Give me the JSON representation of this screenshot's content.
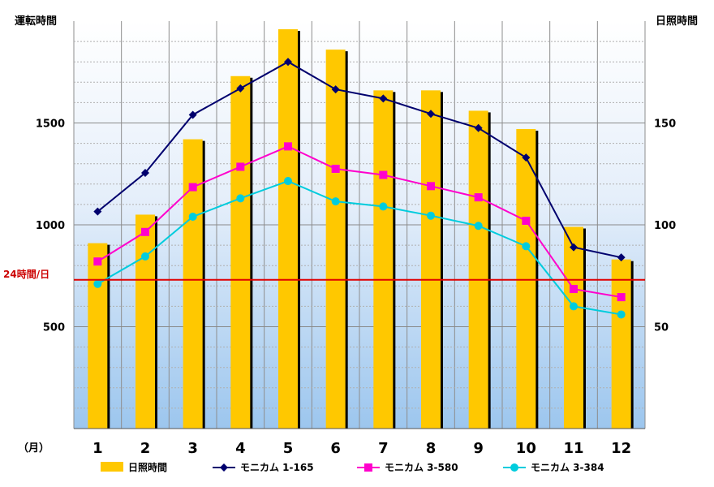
{
  "chart_data": {
    "type": "bar+line",
    "left_axis": {
      "label": "運転時間",
      "range": [
        0,
        2000
      ],
      "ticks": [
        500,
        1000,
        1500
      ]
    },
    "right_axis": {
      "label": "日照時間",
      "range": [
        0,
        200
      ],
      "ticks": [
        50,
        100,
        150
      ]
    },
    "x_unit_label": "（月）",
    "categories": [
      "1",
      "2",
      "3",
      "4",
      "5",
      "6",
      "7",
      "8",
      "9",
      "10",
      "11",
      "12"
    ],
    "bars": {
      "name": "日照時間",
      "axis": "right",
      "color": "#FFC800",
      "values": [
        91,
        105,
        142,
        173,
        196,
        186,
        166,
        166,
        156,
        147,
        99,
        83
      ]
    },
    "series": [
      {
        "name": "モニカム 1-165",
        "axis": "left",
        "color": "#00006E",
        "marker": "diamond",
        "values": [
          1065,
          1255,
          1540,
          1670,
          1800,
          1665,
          1620,
          1545,
          1475,
          1330,
          890,
          840
        ]
      },
      {
        "name": "モニカム 3-580",
        "axis": "left",
        "color": "#FF00CC",
        "marker": "square",
        "values": [
          820,
          965,
          1185,
          1285,
          1385,
          1275,
          1245,
          1190,
          1135,
          1020,
          685,
          645
        ]
      },
      {
        "name": "モニカム 3-384",
        "axis": "left",
        "color": "#00CCDD",
        "marker": "circle",
        "values": [
          710,
          845,
          1040,
          1130,
          1215,
          1115,
          1090,
          1045,
          995,
          895,
          600,
          560
        ]
      }
    ],
    "reference_line": {
      "label": "24時間/日",
      "value": 730,
      "axis": "left",
      "color": "#E00000"
    },
    "grid": true,
    "legend": "bottom"
  }
}
